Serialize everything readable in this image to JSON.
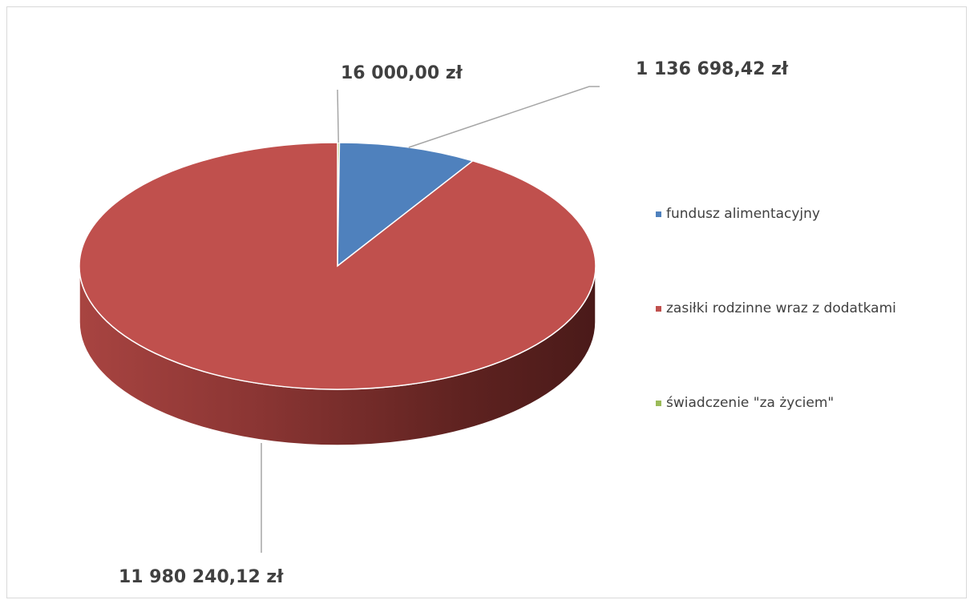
{
  "chart_data": {
    "type": "pie",
    "style": "3d",
    "title": "",
    "legend_position": "right",
    "slices": [
      {
        "name": "fundusz alimentacyjny",
        "value": 1136698.42,
        "label": "1 136 698,42 zł",
        "color": "#4f81bd"
      },
      {
        "name": "zasiłki rodzinne wraz z dodatkami",
        "value": 11980240.12,
        "label": "11 980 240,12 zł",
        "color": "#c0504d"
      },
      {
        "name": "świadczenie \"za życiem\"",
        "value": 16000.0,
        "label": "16 000,00 zł",
        "color": "#9bbb59"
      }
    ]
  }
}
